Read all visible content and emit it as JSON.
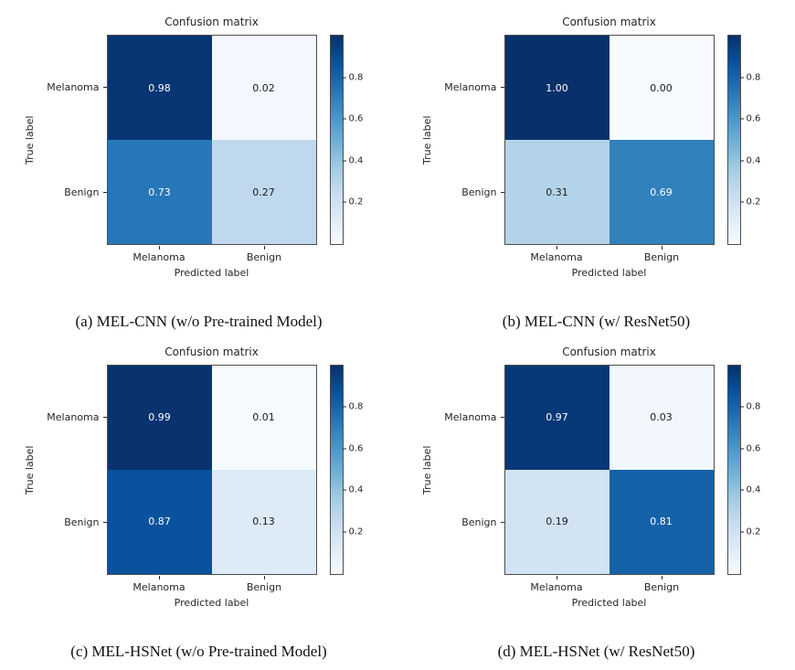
{
  "chart_data": [
    {
      "type": "heatmap",
      "title": "Confusion matrix",
      "xlabel": "Predicted label",
      "ylabel": "True label",
      "x_ticks": [
        "Melanoma",
        "Benign"
      ],
      "y_ticks": [
        "Melanoma",
        "Benign"
      ],
      "values": [
        [
          0.98,
          0.02
        ],
        [
          0.73,
          0.27
        ]
      ],
      "labels": [
        [
          "0.98",
          "0.02"
        ],
        [
          "0.73",
          "0.27"
        ]
      ],
      "colormap": "Blues",
      "vmin": 0,
      "vmax": 1,
      "colorbar_ticks": [
        0.2,
        0.4,
        0.6,
        0.8
      ],
      "caption": "(a) MEL-CNN (w/o Pre-trained Model)"
    },
    {
      "type": "heatmap",
      "title": "Confusion matrix",
      "xlabel": "Predicted label",
      "ylabel": "True label",
      "x_ticks": [
        "Melanoma",
        "Benign"
      ],
      "y_ticks": [
        "Melanoma",
        "Benign"
      ],
      "values": [
        [
          1.0,
          0.0
        ],
        [
          0.31,
          0.69
        ]
      ],
      "labels": [
        [
          "1.00",
          "0.00"
        ],
        [
          "0.31",
          "0.69"
        ]
      ],
      "colormap": "Blues",
      "vmin": 0,
      "vmax": 1,
      "colorbar_ticks": [
        0.2,
        0.4,
        0.6,
        0.8
      ],
      "caption": "(b) MEL-CNN (w/ ResNet50)"
    },
    {
      "type": "heatmap",
      "title": "Confusion matrix",
      "xlabel": "Predicted label",
      "ylabel": "True label",
      "x_ticks": [
        "Melanoma",
        "Benign"
      ],
      "y_ticks": [
        "Melanoma",
        "Benign"
      ],
      "values": [
        [
          0.99,
          0.01
        ],
        [
          0.87,
          0.13
        ]
      ],
      "labels": [
        [
          "0.99",
          "0.01"
        ],
        [
          "0.87",
          "0.13"
        ]
      ],
      "colormap": "Blues",
      "vmin": 0,
      "vmax": 1,
      "colorbar_ticks": [
        0.2,
        0.4,
        0.6,
        0.8
      ],
      "caption": "(c) MEL-HSNet (w/o Pre-trained Model)"
    },
    {
      "type": "heatmap",
      "title": "Confusion matrix",
      "xlabel": "Predicted label",
      "ylabel": "True label",
      "x_ticks": [
        "Melanoma",
        "Benign"
      ],
      "y_ticks": [
        "Melanoma",
        "Benign"
      ],
      "values": [
        [
          0.97,
          0.03
        ],
        [
          0.19,
          0.81
        ]
      ],
      "labels": [
        [
          "0.97",
          "0.03"
        ],
        [
          "0.19",
          "0.81"
        ]
      ],
      "colormap": "Blues",
      "vmin": 0,
      "vmax": 1,
      "colorbar_ticks": [
        0.2,
        0.4,
        0.6,
        0.8
      ],
      "caption": "(d) MEL-HSNet (w/ ResNet50)"
    }
  ]
}
